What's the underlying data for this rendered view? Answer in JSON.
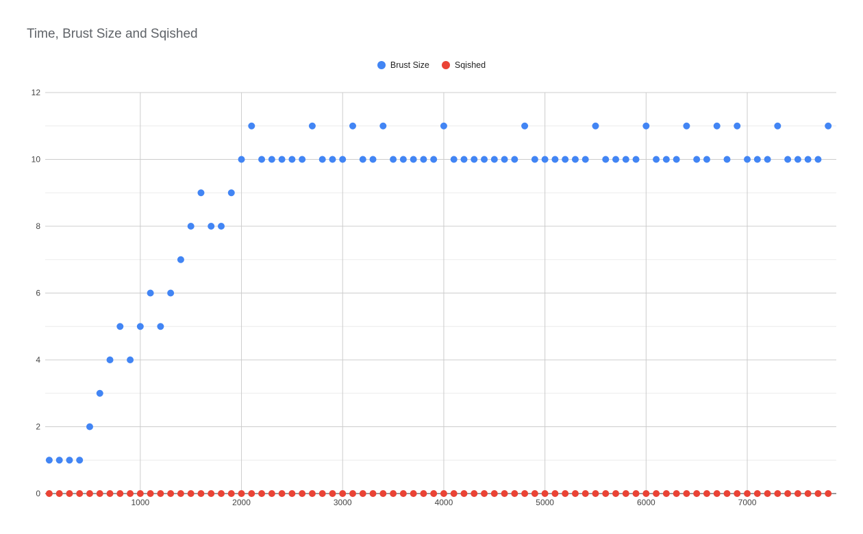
{
  "chart_data": {
    "type": "scatter",
    "title": "Time, Brust Size and Sqished",
    "xlabel": "",
    "ylabel": "",
    "xlim": [
      60,
      7880
    ],
    "ylim": [
      0,
      12
    ],
    "x_ticks": [
      1000,
      2000,
      3000,
      4000,
      5000,
      6000,
      7000
    ],
    "y_ticks": [
      0,
      2,
      4,
      6,
      8,
      10,
      12
    ],
    "grid": true,
    "legend_position": "top-center",
    "series": [
      {
        "name": "Brust Size",
        "color": "#4285f4",
        "x": [
          100,
          200,
          300,
          400,
          500,
          600,
          700,
          800,
          900,
          1000,
          1100,
          1200,
          1300,
          1400,
          1500,
          1600,
          1700,
          1800,
          1900,
          2000,
          2100,
          2200,
          2300,
          2400,
          2500,
          2600,
          2700,
          2800,
          2900,
          3000,
          3100,
          3200,
          3300,
          3400,
          3500,
          3600,
          3700,
          3800,
          3900,
          4000,
          4100,
          4200,
          4300,
          4400,
          4500,
          4600,
          4700,
          4800,
          4900,
          5000,
          5100,
          5200,
          5300,
          5400,
          5500,
          5600,
          5700,
          5800,
          5900,
          6000,
          6100,
          6200,
          6300,
          6400,
          6500,
          6600,
          6700,
          6800,
          6900,
          7000,
          7100,
          7200,
          7300,
          7400,
          7500,
          7600,
          7700,
          7800
        ],
        "values": [
          1,
          1,
          1,
          1,
          2,
          3,
          4,
          5,
          4,
          5,
          6,
          5,
          6,
          7,
          8,
          9,
          8,
          8,
          9,
          10,
          11,
          10,
          10,
          10,
          10,
          10,
          11,
          10,
          10,
          10,
          11,
          10,
          10,
          11,
          10,
          10,
          10,
          10,
          10,
          11,
          10,
          10,
          10,
          10,
          10,
          10,
          10,
          11,
          10,
          10,
          10,
          10,
          10,
          10,
          11,
          10,
          10,
          10,
          10,
          11,
          10,
          10,
          10,
          11,
          10,
          10,
          11,
          10,
          11,
          10,
          10,
          10,
          11,
          10,
          10,
          10,
          10,
          11
        ]
      },
      {
        "name": "Sqished",
        "color": "#ea4335",
        "x": [
          100,
          200,
          300,
          400,
          500,
          600,
          700,
          800,
          900,
          1000,
          1100,
          1200,
          1300,
          1400,
          1500,
          1600,
          1700,
          1800,
          1900,
          2000,
          2100,
          2200,
          2300,
          2400,
          2500,
          2600,
          2700,
          2800,
          2900,
          3000,
          3100,
          3200,
          3300,
          3400,
          3500,
          3600,
          3700,
          3800,
          3900,
          4000,
          4100,
          4200,
          4300,
          4400,
          4500,
          4600,
          4700,
          4800,
          4900,
          5000,
          5100,
          5200,
          5300,
          5400,
          5500,
          5600,
          5700,
          5800,
          5900,
          6000,
          6100,
          6200,
          6300,
          6400,
          6500,
          6600,
          6700,
          6800,
          6900,
          7000,
          7100,
          7200,
          7300,
          7400,
          7500,
          7600,
          7700,
          7800
        ],
        "values": [
          0,
          0,
          0,
          0,
          0,
          0,
          0,
          0,
          0,
          0,
          0,
          0,
          0,
          0,
          0,
          0,
          0,
          0,
          0,
          0,
          0,
          0,
          0,
          0,
          0,
          0,
          0,
          0,
          0,
          0,
          0,
          0,
          0,
          0,
          0,
          0,
          0,
          0,
          0,
          0,
          0,
          0,
          0,
          0,
          0,
          0,
          0,
          0,
          0,
          0,
          0,
          0,
          0,
          0,
          0,
          0,
          0,
          0,
          0,
          0,
          0,
          0,
          0,
          0,
          0,
          0,
          0,
          0,
          0,
          0,
          0,
          0,
          0,
          0,
          0,
          0,
          0,
          0
        ]
      }
    ]
  }
}
